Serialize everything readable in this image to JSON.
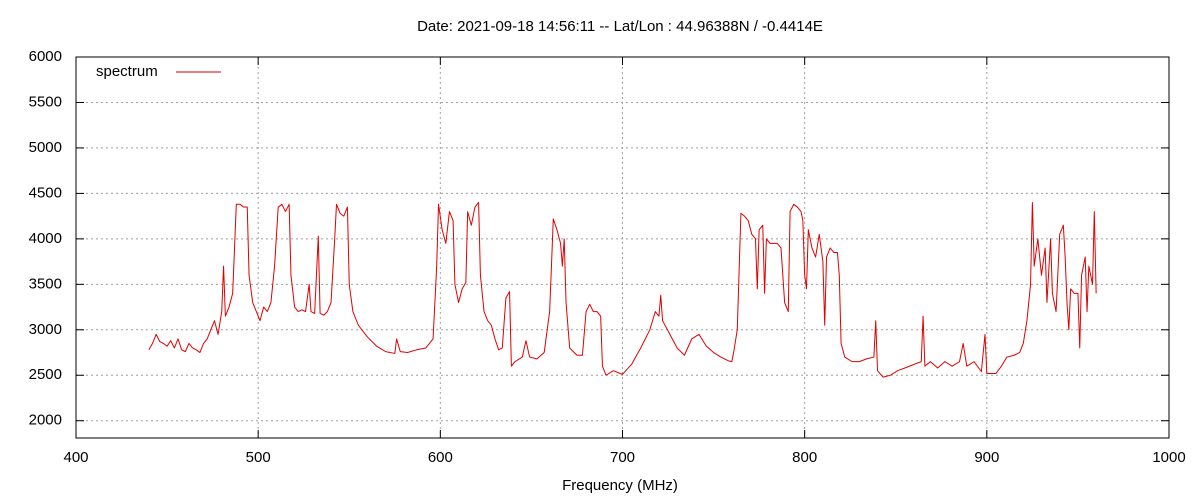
{
  "chart_data": {
    "type": "line",
    "title": "Date: 2021-09-18 14:56:11  --  Lat/Lon : 44.96388N / -0.4414E",
    "x_label": "Frequency (MHz)",
    "xlim": [
      400,
      1000
    ],
    "xticks": [
      400,
      500,
      600,
      700,
      800,
      900,
      1000
    ],
    "ylim": [
      1810,
      6000
    ],
    "yticks": [
      2000,
      2500,
      3000,
      3500,
      4000,
      4500,
      5000,
      5500,
      6000
    ],
    "grid": true,
    "legend": "top-left",
    "x": [
      440,
      442,
      444,
      446,
      448,
      450,
      452,
      454,
      456,
      458,
      460,
      462,
      464,
      466,
      468,
      470,
      472,
      474,
      476,
      478,
      480,
      481,
      482,
      484,
      486,
      488,
      490,
      492,
      494,
      495,
      497,
      499,
      501,
      503,
      505,
      507,
      509,
      511,
      513,
      515,
      517,
      518,
      520,
      522,
      524,
      526,
      528,
      529,
      531,
      533,
      534,
      536,
      538,
      540,
      542,
      543,
      545,
      547,
      549,
      550,
      552,
      555,
      560,
      565,
      570,
      575,
      576,
      578,
      582,
      587,
      592,
      596,
      598,
      599,
      601,
      603,
      605,
      607,
      608,
      610,
      612,
      614,
      615,
      617,
      619,
      621,
      622,
      624,
      626,
      628,
      630,
      632,
      634,
      636,
      638,
      639,
      641,
      645,
      647,
      649,
      653,
      657,
      660,
      661,
      662,
      664,
      666,
      667,
      668,
      669,
      671,
      675,
      678,
      680,
      682,
      684,
      686,
      688,
      689,
      691,
      695,
      700,
      705,
      710,
      715,
      718,
      720,
      721,
      722,
      726,
      730,
      734,
      738,
      742,
      746,
      750,
      754,
      758,
      760,
      761,
      763,
      765,
      767,
      769,
      771,
      773,
      774,
      775,
      777,
      778,
      779,
      781,
      783,
      785,
      787,
      789,
      791,
      792,
      794,
      796,
      798,
      799,
      800,
      801,
      802,
      804,
      806,
      808,
      810,
      811,
      812,
      814,
      816,
      818,
      819,
      820,
      822,
      826,
      830,
      834,
      838,
      839,
      840,
      843,
      847,
      851,
      855,
      860,
      864,
      865,
      866,
      869,
      873,
      877,
      881,
      885,
      887,
      889,
      893,
      897,
      899,
      900,
      905,
      908,
      911,
      915,
      918,
      920,
      922,
      924,
      925,
      926,
      928,
      930,
      932,
      933,
      935,
      936,
      938,
      940,
      942,
      943,
      944,
      945,
      946,
      948,
      950,
      951,
      952,
      954,
      955,
      956,
      958,
      959,
      960
    ],
    "series": [
      {
        "name": "spectrum",
        "color": "#e00000",
        "values": [
          2780,
          2850,
          2950,
          2870,
          2850,
          2820,
          2880,
          2800,
          2900,
          2780,
          2760,
          2850,
          2800,
          2780,
          2750,
          2850,
          2900,
          3000,
          3100,
          2950,
          3200,
          3700,
          3150,
          3250,
          3400,
          4380,
          4380,
          4350,
          4350,
          3600,
          3300,
          3200,
          3100,
          3250,
          3200,
          3300,
          3700,
          4350,
          4380,
          4300,
          4380,
          3600,
          3250,
          3200,
          3220,
          3200,
          3500,
          3200,
          3180,
          4030,
          3180,
          3160,
          3200,
          3300,
          4000,
          4380,
          4280,
          4250,
          4350,
          3500,
          3200,
          3050,
          2920,
          2820,
          2760,
          2740,
          2900,
          2760,
          2750,
          2780,
          2800,
          2900,
          3700,
          4380,
          4100,
          3950,
          4300,
          4200,
          3500,
          3300,
          3450,
          3520,
          4300,
          4150,
          4350,
          4400,
          3600,
          3200,
          3100,
          3050,
          2900,
          2780,
          2800,
          3350,
          3420,
          2600,
          2650,
          2700,
          2880,
          2700,
          2680,
          2750,
          3200,
          3700,
          4220,
          4100,
          3950,
          3700,
          4000,
          3300,
          2800,
          2720,
          2720,
          3200,
          3280,
          3200,
          3200,
          3150,
          2600,
          2500,
          2550,
          2510,
          2620,
          2800,
          3000,
          3200,
          3150,
          3380,
          3100,
          2950,
          2800,
          2720,
          2900,
          2950,
          2820,
          2750,
          2700,
          2660,
          2650,
          2750,
          3000,
          4280,
          4250,
          4200,
          4050,
          4000,
          3450,
          4100,
          4150,
          3400,
          4000,
          3950,
          3950,
          3950,
          3900,
          3300,
          3200,
          4300,
          4380,
          4350,
          4300,
          4200,
          3600,
          3450,
          4100,
          3900,
          3800,
          4050,
          3750,
          3050,
          3800,
          3900,
          3850,
          3850,
          3600,
          2850,
          2700,
          2650,
          2650,
          2680,
          2700,
          3100,
          2550,
          2480,
          2500,
          2550,
          2580,
          2620,
          2650,
          3150,
          2600,
          2650,
          2580,
          2650,
          2600,
          2650,
          2850,
          2600,
          2650,
          2540,
          2950,
          2520,
          2520,
          2600,
          2700,
          2720,
          2750,
          2850,
          3100,
          3500,
          4400,
          3700,
          4000,
          3600,
          3900,
          3300,
          4000,
          3400,
          3200,
          4050,
          4150,
          3800,
          3300,
          3000,
          3450,
          3400,
          3400,
          2800,
          3600,
          3800,
          3200,
          3700,
          3500,
          4300,
          3400
        ]
      }
    ]
  }
}
